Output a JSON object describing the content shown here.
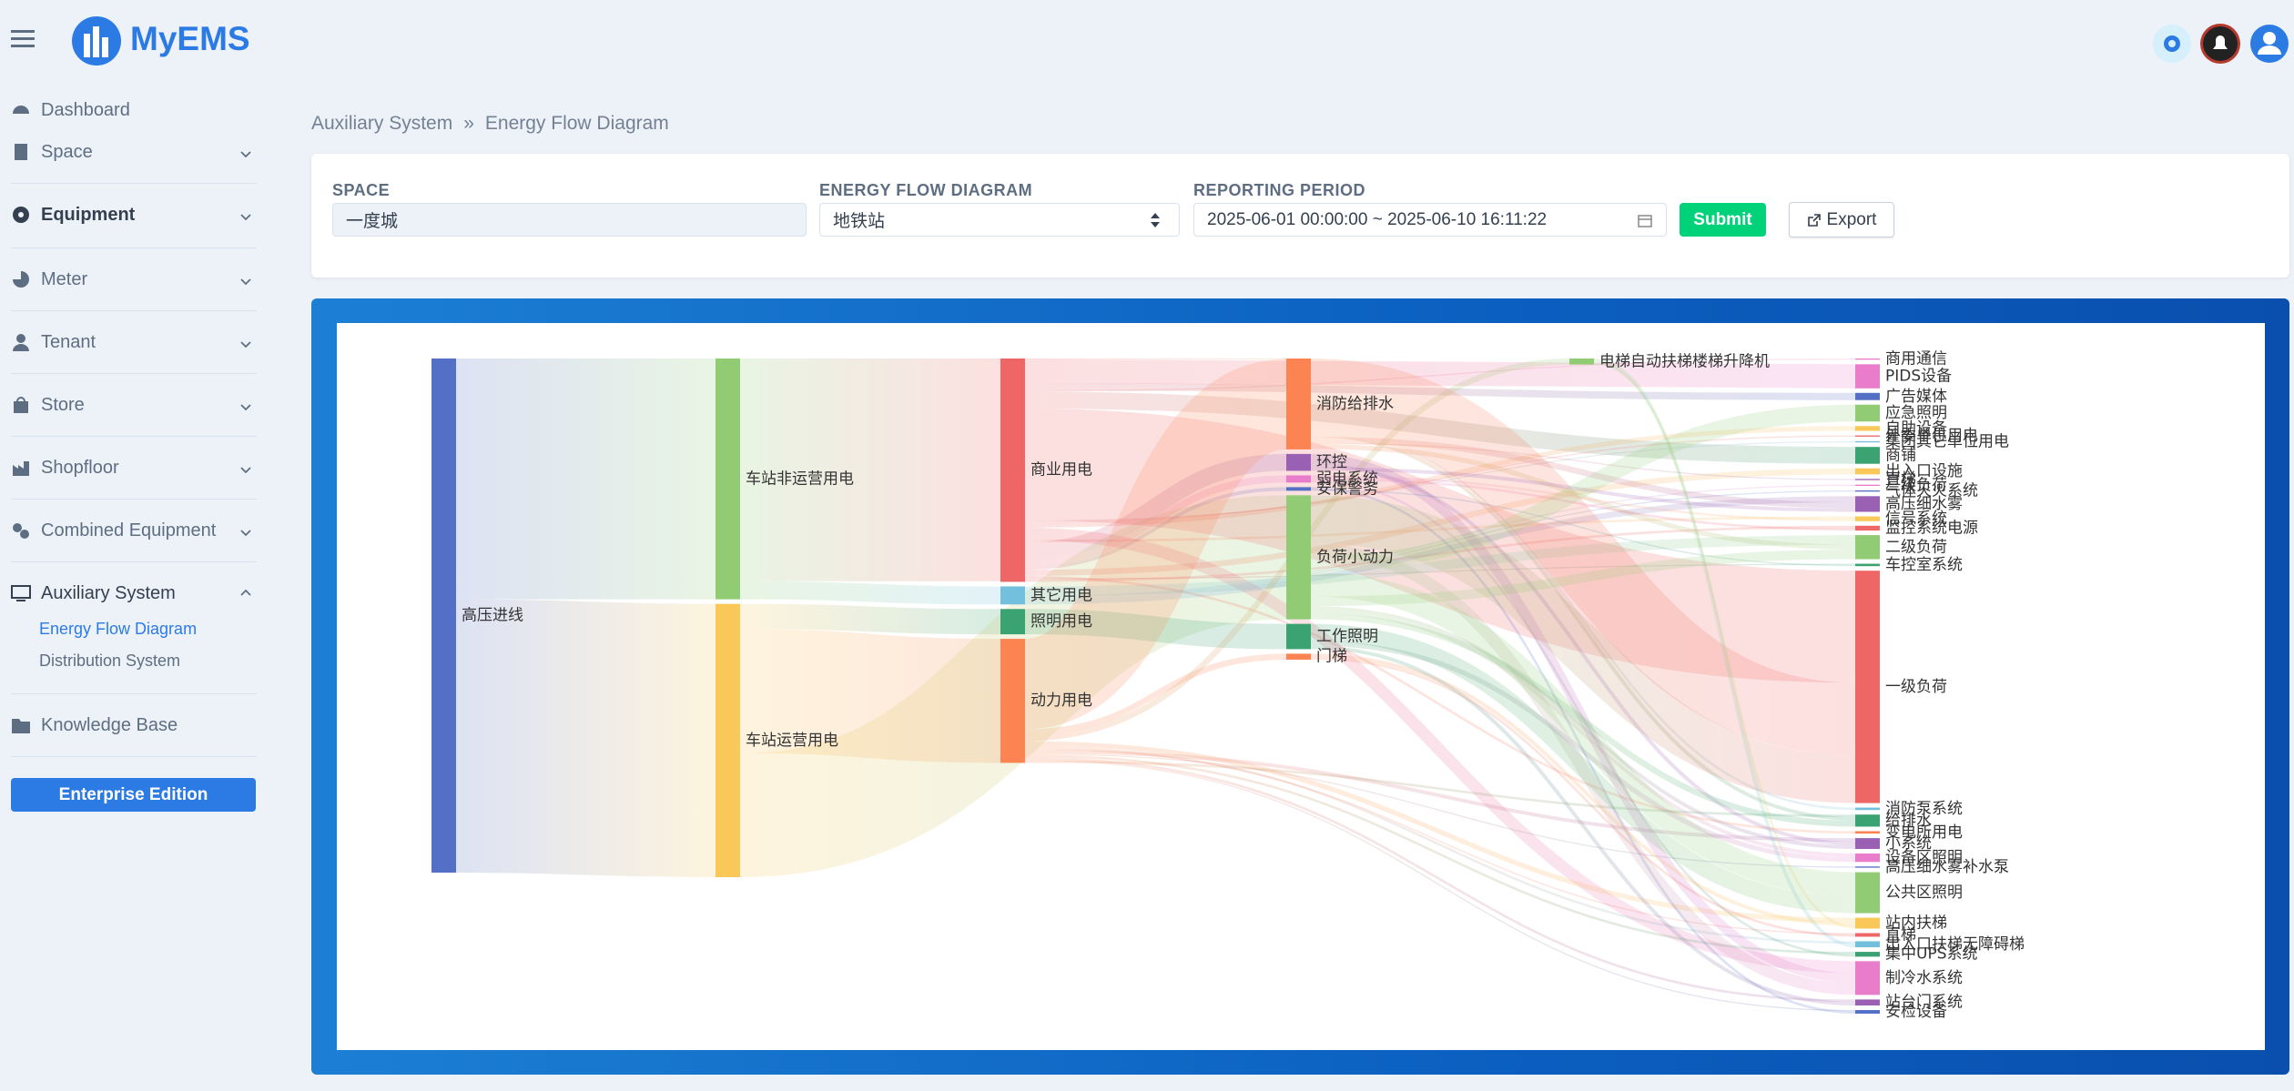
{
  "header": {
    "logo": "MyEMS"
  },
  "sidebar": {
    "items": [
      "Dashboard",
      "Space",
      "Equipment",
      "Meter",
      "Tenant",
      "Store",
      "Shopfloor",
      "Combined Equipment",
      "Auxiliary System",
      "Knowledge Base"
    ],
    "auxiliary_children": [
      "Energy Flow Diagram",
      "Distribution System"
    ],
    "edition_button": "Enterprise Edition"
  },
  "breadcrumb": [
    "Auxiliary System",
    "»",
    "Energy Flow Diagram"
  ],
  "filters": {
    "space_label": "SPACE",
    "space_value": "一度城",
    "diagram_label": "ENERGY FLOW DIAGRAM",
    "diagram_value": "地铁站",
    "period_label": "REPORTING PERIOD",
    "period_value": "2025-06-01 00:00:00 ~ 2025-06-10 16:11:22",
    "submit": "Submit",
    "export": "Export"
  },
  "chart_data": {
    "type": "sankey",
    "nodes": [
      {
        "name": "高压进线",
        "color": "#5470c6",
        "depth": 0
      },
      {
        "name": "车站非运营用电",
        "color": "#91cc75",
        "depth": 1
      },
      {
        "name": "车站运营用电",
        "color": "#fac858",
        "depth": 1
      },
      {
        "name": "商业用电",
        "color": "#ee6666",
        "depth": 2
      },
      {
        "name": "其它用电",
        "color": "#73c0de",
        "depth": 2
      },
      {
        "name": "照明用电",
        "color": "#3ba272",
        "depth": 2
      },
      {
        "name": "动力用电",
        "color": "#fc8452",
        "depth": 2
      },
      {
        "name": "消防给排水",
        "color": "#fc8452",
        "depth": 3
      },
      {
        "name": "环控",
        "color": "#9a60b4",
        "depth": 3
      },
      {
        "name": "弱电系统",
        "color": "#ea7ccc",
        "depth": 3
      },
      {
        "name": "安保警务",
        "color": "#5470c6",
        "depth": 3
      },
      {
        "name": "负荷小动力",
        "color": "#91cc75",
        "depth": 3
      },
      {
        "name": "工作照明",
        "color": "#3ba272",
        "depth": 3
      },
      {
        "name": "门梯",
        "color": "#fc8452",
        "depth": 3
      },
      {
        "name": "电梯自动扶梯楼梯升降机",
        "color": "#91cc75",
        "depth": 4
      },
      {
        "name": "商用通信",
        "color": "#ea7ccc",
        "depth": 5
      },
      {
        "name": "PIDS设备",
        "color": "#ea7ccc",
        "depth": 5
      },
      {
        "name": "广告媒体",
        "color": "#5470c6",
        "depth": 5
      },
      {
        "name": "应急照明",
        "color": "#91cc75",
        "depth": 5
      },
      {
        "name": "自助设备",
        "color": "#fac858",
        "depth": 5
      },
      {
        "name": "外委单位用电",
        "color": "#ee6666",
        "depth": 5
      },
      {
        "name": "集团其它单位用电",
        "color": "#73c0de",
        "depth": 5
      },
      {
        "name": "商铺",
        "color": "#3ba272",
        "depth": 5
      },
      {
        "name": "出入口设施",
        "color": "#fac858",
        "depth": 5
      },
      {
        "name": "直梯",
        "color": "#9a60b4",
        "depth": 5
      },
      {
        "name": "三级负荷",
        "color": "#ea7ccc",
        "depth": 5
      },
      {
        "name": "气体灭火系统",
        "color": "#5470c6",
        "depth": 5
      },
      {
        "name": "高压细水雾",
        "color": "#9a60b4",
        "depth": 5
      },
      {
        "name": "信号系统",
        "color": "#fac858",
        "depth": 5
      },
      {
        "name": "监控系统电源",
        "color": "#ee6666",
        "depth": 5
      },
      {
        "name": "二级负荷",
        "color": "#91cc75",
        "depth": 5
      },
      {
        "name": "车控室系统",
        "color": "#3ba272",
        "depth": 5
      },
      {
        "name": "一级负荷",
        "color": "#ee6666",
        "depth": 5
      },
      {
        "name": "消防泵系统",
        "color": "#73c0de",
        "depth": 5
      },
      {
        "name": "给排水",
        "color": "#3ba272",
        "depth": 5
      },
      {
        "name": "变电所用电",
        "color": "#fc8452",
        "depth": 5
      },
      {
        "name": "小系统",
        "color": "#9a60b4",
        "depth": 5
      },
      {
        "name": "设备区照明",
        "color": "#ea7ccc",
        "depth": 5
      },
      {
        "name": "高压细水雾补水泵",
        "color": "#5470c6",
        "depth": 5
      },
      {
        "name": "公共区照明",
        "color": "#91cc75",
        "depth": 5
      },
      {
        "name": "站内扶梯",
        "color": "#fac858",
        "depth": 5
      },
      {
        "name": "直梯",
        "color": "#ee6666",
        "depth": 5
      },
      {
        "name": "出入口扶梯无障碍梯",
        "color": "#73c0de",
        "depth": 5
      },
      {
        "name": "集中UPS系统",
        "color": "#3ba272",
        "depth": 5
      },
      {
        "name": "制冷水系统",
        "color": "#ea7ccc",
        "depth": 5
      },
      {
        "name": "站台门系统",
        "color": "#9a60b4",
        "depth": 5
      },
      {
        "name": "安检设备",
        "color": "#5470c6",
        "depth": 5
      }
    ],
    "links": [
      {
        "source": 0,
        "target": 1,
        "value": 200
      },
      {
        "source": 0,
        "target": 2,
        "value": 227
      },
      {
        "source": 1,
        "target": 3,
        "value": 185
      },
      {
        "source": 1,
        "target": 4,
        "value": 15
      },
      {
        "source": 2,
        "target": 5,
        "value": 21
      },
      {
        "source": 2,
        "target": 6,
        "value": 103
      },
      {
        "source": 2,
        "target": 11,
        "value": 103
      },
      {
        "source": 3,
        "target": 7,
        "value": 0.5
      },
      {
        "source": 3,
        "target": 16,
        "value": 20
      },
      {
        "source": 3,
        "target": 17,
        "value": 6
      },
      {
        "source": 3,
        "target": 15,
        "value": 1
      },
      {
        "source": 3,
        "target": 22,
        "value": 14
      },
      {
        "source": 3,
        "target": 32,
        "value": 93
      },
      {
        "source": 3,
        "target": 21,
        "value": 1
      },
      {
        "source": 3,
        "target": 20,
        "value": 1
      },
      {
        "source": 3,
        "target": 19,
        "value": 4
      },
      {
        "source": 3,
        "target": 44,
        "value": 10
      },
      {
        "source": 3,
        "target": 28,
        "value": 2
      },
      {
        "source": 3,
        "target": 8,
        "value": 14
      },
      {
        "source": 3,
        "target": 9,
        "value": 6
      },
      {
        "source": 3,
        "target": 10,
        "value": 3
      },
      {
        "source": 3,
        "target": 23,
        "value": 5
      },
      {
        "source": 3,
        "target": 35,
        "value": 2
      },
      {
        "source": 3,
        "target": 31,
        "value": 1
      },
      {
        "source": 3,
        "target": 29,
        "value": 2
      },
      {
        "source": 4,
        "target": 30,
        "value": 8
      },
      {
        "source": 4,
        "target": 25,
        "value": 1
      },
      {
        "source": 4,
        "target": 26,
        "value": 1
      },
      {
        "source": 4,
        "target": 27,
        "value": 5
      },
      {
        "source": 5,
        "target": 12,
        "value": 21
      },
      {
        "source": 6,
        "target": 7,
        "value": 75
      },
      {
        "source": 6,
        "target": 13,
        "value": 5
      },
      {
        "source": 6,
        "target": 14,
        "value": 5
      },
      {
        "source": 6,
        "target": 40,
        "value": 4
      },
      {
        "source": 6,
        "target": 42,
        "value": 2
      },
      {
        "source": 6,
        "target": 41,
        "value": 1
      },
      {
        "source": 6,
        "target": 36,
        "value": 3
      },
      {
        "source": 6,
        "target": 38,
        "value": 1
      },
      {
        "source": 6,
        "target": 43,
        "value": 2
      },
      {
        "source": 6,
        "target": 45,
        "value": 2
      },
      {
        "source": 6,
        "target": 46,
        "value": 1
      },
      {
        "source": 6,
        "target": 34,
        "value": 2
      },
      {
        "source": 7,
        "target": 32,
        "value": 60
      },
      {
        "source": 7,
        "target": 33,
        "value": 2
      },
      {
        "source": 7,
        "target": 34,
        "value": 3
      },
      {
        "source": 7,
        "target": 27,
        "value": 5
      },
      {
        "source": 7,
        "target": 24,
        "value": 1
      },
      {
        "source": 7,
        "target": 30,
        "value": 4
      },
      {
        "source": 8,
        "target": 44,
        "value": 8
      },
      {
        "source": 8,
        "target": 36,
        "value": 3
      },
      {
        "source": 8,
        "target": 27,
        "value": 3
      },
      {
        "source": 9,
        "target": 28,
        "value": 2
      },
      {
        "source": 9,
        "target": 29,
        "value": 2
      },
      {
        "source": 9,
        "target": 43,
        "value": 2
      },
      {
        "source": 10,
        "target": 46,
        "value": 2
      },
      {
        "source": 10,
        "target": 31,
        "value": 1
      },
      {
        "source": 11,
        "target": 32,
        "value": 40
      },
      {
        "source": 11,
        "target": 44,
        "value": 10
      },
      {
        "source": 11,
        "target": 18,
        "value": 14
      },
      {
        "source": 11,
        "target": 39,
        "value": 20
      },
      {
        "source": 11,
        "target": 30,
        "value": 8
      },
      {
        "source": 11,
        "target": 36,
        "value": 3
      },
      {
        "source": 11,
        "target": 37,
        "value": 3
      },
      {
        "source": 11,
        "target": 34,
        "value": 5
      },
      {
        "source": 12,
        "target": 39,
        "value": 14
      },
      {
        "source": 12,
        "target": 37,
        "value": 4
      },
      {
        "source": 12,
        "target": 45,
        "value": 3
      },
      {
        "source": 13,
        "target": 40,
        "value": 3
      },
      {
        "source": 13,
        "target": 41,
        "value": 2
      },
      {
        "source": 14,
        "target": 42,
        "value": 3
      },
      {
        "source": 14,
        "target": 40,
        "value": 2
      }
    ]
  }
}
